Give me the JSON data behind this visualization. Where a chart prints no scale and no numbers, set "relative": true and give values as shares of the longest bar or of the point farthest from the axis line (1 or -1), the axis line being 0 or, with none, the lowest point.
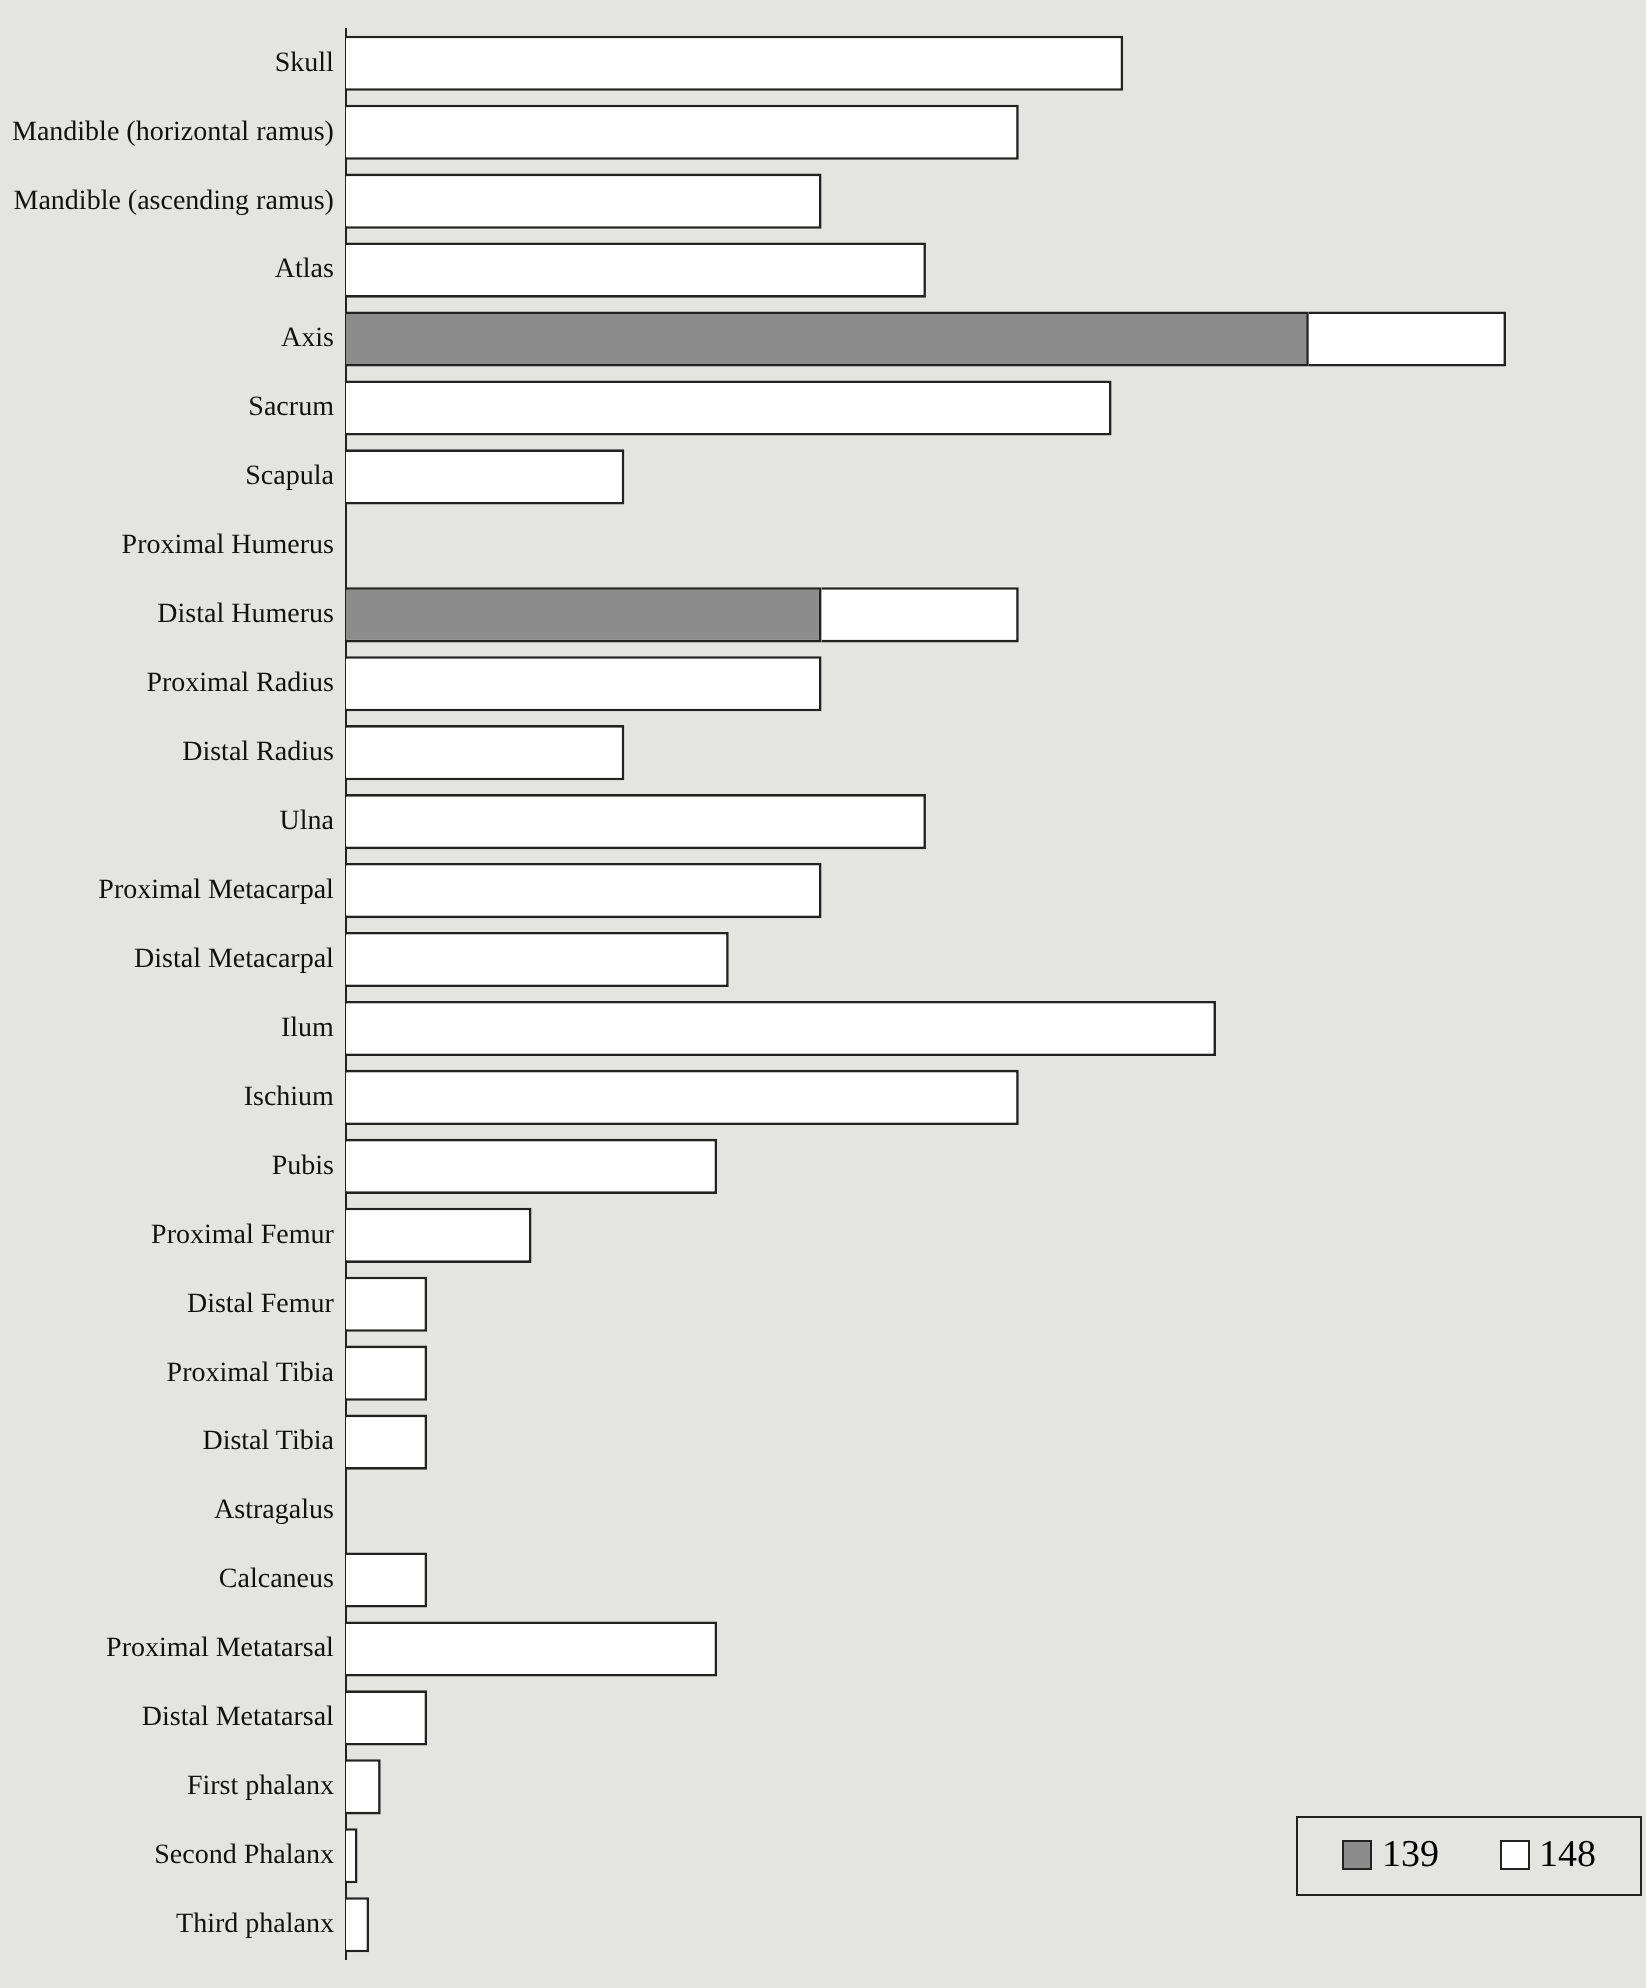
{
  "chart_data": {
    "type": "bar",
    "orientation": "horizontal",
    "stacked": true,
    "relative": true,
    "legend": "bottom right",
    "categories": [
      "Skull",
      "Mandible (horizontal ramus)",
      "Mandible (ascending ramus)",
      "Atlas",
      "Axis",
      "Sacrum",
      "Scapula",
      "Proximal Humerus",
      "Distal Humerus",
      "Proximal Radius",
      "Distal Radius",
      "Ulna",
      "Proximal Metacarpal",
      "Distal Metacarpal",
      "Ilum",
      "Ischium",
      "Pubis",
      "Proximal Femur",
      "Distal Femur",
      "Proximal Tibia",
      "Distal Tibia",
      "Astragalus",
      "Calcaneus",
      "Proximal Metatarsal",
      "Distal Metatarsal",
      "First phalanx",
      "Second Phalanx",
      "Third phalanx"
    ],
    "series": [
      {
        "name": "139",
        "color": "#8c8c8c",
        "values": [
          0,
          0,
          0,
          0,
          0.83,
          0,
          0,
          0,
          0.41,
          0,
          0,
          0,
          0,
          0,
          0,
          0,
          0,
          0,
          0,
          0,
          0,
          0,
          0,
          0,
          0,
          0,
          0,
          0
        ]
      },
      {
        "name": "148",
        "color": "#ffffff",
        "values": [
          0.67,
          0.58,
          0.41,
          0.5,
          0.17,
          0.66,
          0.24,
          0,
          0.17,
          0.41,
          0.24,
          0.5,
          0.41,
          0.33,
          0.75,
          0.58,
          0.32,
          0.16,
          0.07,
          0.07,
          0.07,
          0,
          0.07,
          0.32,
          0.07,
          0.03,
          0.01,
          0.02
        ]
      }
    ]
  }
}
